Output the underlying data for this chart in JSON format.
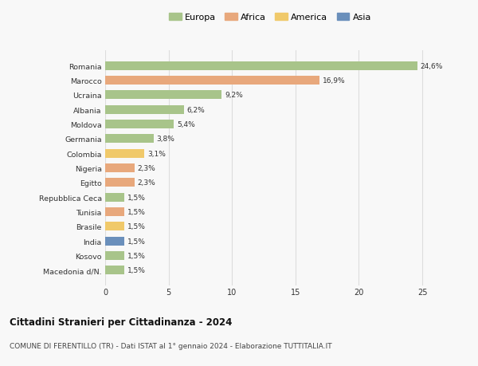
{
  "countries": [
    "Romania",
    "Marocco",
    "Ucraina",
    "Albania",
    "Moldova",
    "Germania",
    "Colombia",
    "Nigeria",
    "Egitto",
    "Repubblica Ceca",
    "Tunisia",
    "Brasile",
    "India",
    "Kosovo",
    "Macedonia d/N."
  ],
  "values": [
    24.6,
    16.9,
    9.2,
    6.2,
    5.4,
    3.8,
    3.1,
    2.3,
    2.3,
    1.5,
    1.5,
    1.5,
    1.5,
    1.5,
    1.5
  ],
  "labels": [
    "24,6%",
    "16,9%",
    "9,2%",
    "6,2%",
    "5,4%",
    "3,8%",
    "3,1%",
    "2,3%",
    "2,3%",
    "1,5%",
    "1,5%",
    "1,5%",
    "1,5%",
    "1,5%",
    "1,5%"
  ],
  "continents": [
    "Europa",
    "Africa",
    "Europa",
    "Europa",
    "Europa",
    "Europa",
    "America",
    "Africa",
    "Africa",
    "Europa",
    "Africa",
    "America",
    "Asia",
    "Europa",
    "Europa"
  ],
  "colors": {
    "Europa": "#a8c48a",
    "Africa": "#e8a87c",
    "America": "#f0c96a",
    "Asia": "#6a8fbb"
  },
  "legend_order": [
    "Europa",
    "Africa",
    "America",
    "Asia"
  ],
  "xlim": [
    0,
    26
  ],
  "xticks": [
    0,
    5,
    10,
    15,
    20,
    25
  ],
  "title": "Cittadini Stranieri per Cittadinanza - 2024",
  "subtitle": "COMUNE DI FERENTILLO (TR) - Dati ISTAT al 1° gennaio 2024 - Elaborazione TUTTITALIA.IT",
  "background_color": "#f8f8f8",
  "bar_height": 0.6,
  "grid_color": "#dddddd",
  "text_color": "#333333"
}
